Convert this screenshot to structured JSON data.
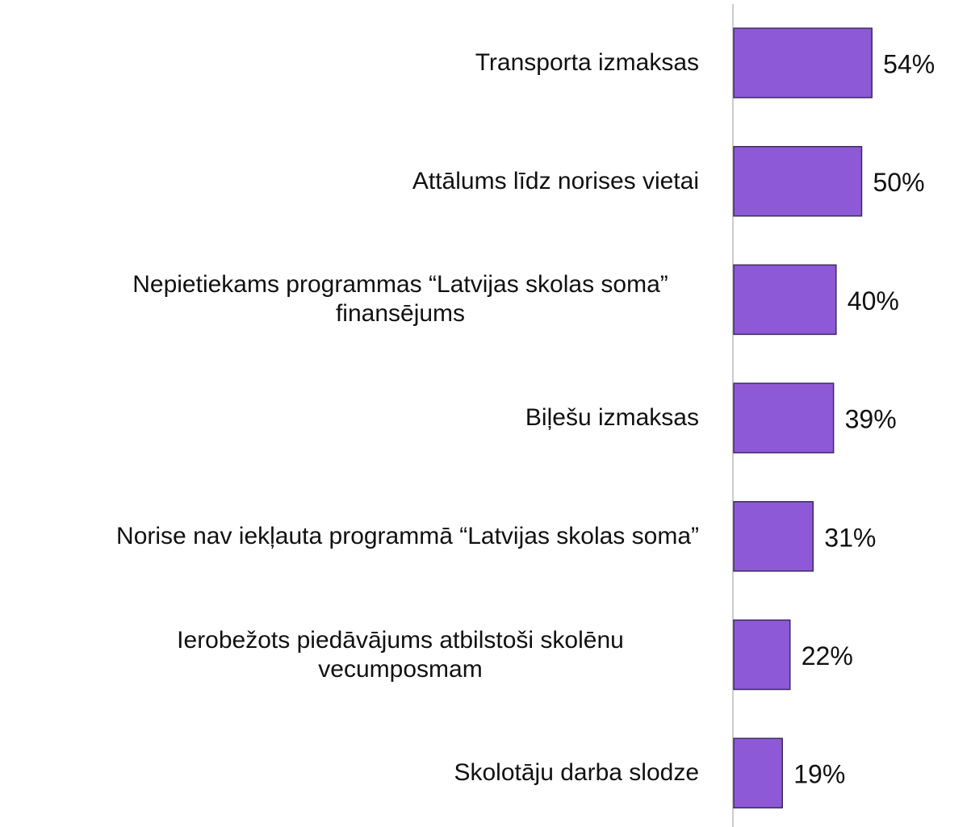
{
  "chart_data": {
    "type": "bar",
    "orientation": "horizontal",
    "color": "#8e59d6",
    "categories": [
      "Transporta izmaksas",
      "Attālums līdz norises vietai",
      "Nepietiekams programmas “Latvijas skolas soma” finansējums",
      "Biļešu izmaksas",
      "Norise nav iekļauta programmā “Latvijas skolas soma”",
      "Ierobežots piedāvājums atbilstoši skolēnu vecumposmam",
      "Skolotāju darba slodze"
    ],
    "values": [
      54,
      50,
      40,
      39,
      31,
      22,
      19
    ],
    "value_labels": [
      "54%",
      "50%",
      "40%",
      "39%",
      "31%",
      "22%",
      "19%"
    ]
  }
}
